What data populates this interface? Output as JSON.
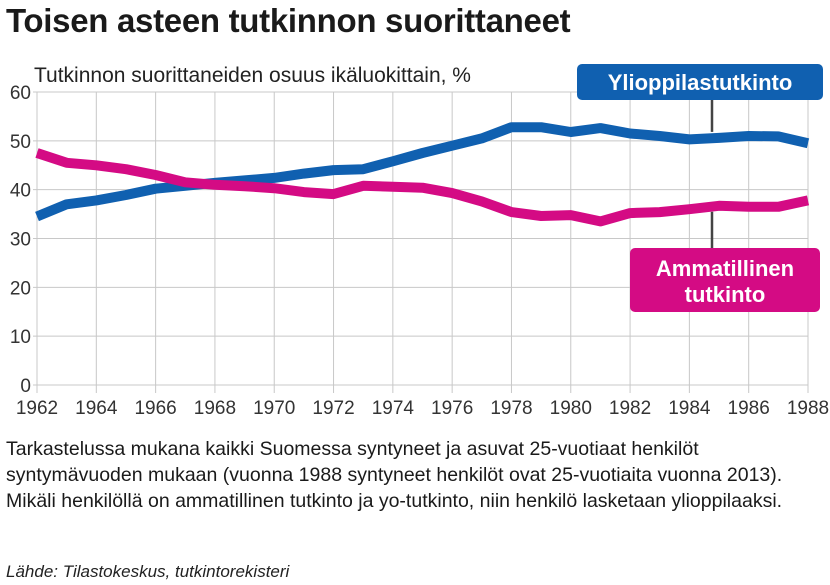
{
  "title": "Toisen asteen tutkinnon suorittaneet",
  "chart_data": {
    "type": "line",
    "subtitle": "Tutkinnon suorittaneiden osuus ikäluokittain, %",
    "x": [
      1962,
      1963,
      1964,
      1965,
      1966,
      1967,
      1968,
      1969,
      1970,
      1971,
      1972,
      1973,
      1974,
      1975,
      1976,
      1977,
      1978,
      1979,
      1980,
      1981,
      1982,
      1983,
      1984,
      1985,
      1986,
      1987,
      1988
    ],
    "x_ticks": [
      "1962",
      "1964",
      "1966",
      "1968",
      "1970",
      "1972",
      "1974",
      "1976",
      "1978",
      "1980",
      "1982",
      "1984",
      "1986",
      "1988"
    ],
    "y_ticks": [
      "0",
      "10",
      "20",
      "30",
      "40",
      "50",
      "60"
    ],
    "ylim": [
      0,
      60
    ],
    "xlim": [
      1962,
      1988
    ],
    "grid": true,
    "series": [
      {
        "name": "Ylioppilastutkinto",
        "color": "#1060b0",
        "values": [
          34.5,
          37.0,
          37.8,
          38.9,
          40.2,
          40.8,
          41.4,
          41.9,
          42.4,
          43.3,
          44.0,
          44.2,
          45.8,
          47.5,
          49.0,
          50.5,
          52.8,
          52.8,
          51.8,
          52.6,
          51.5,
          51.0,
          50.3,
          50.6,
          51.0,
          50.9,
          49.5
        ]
      },
      {
        "name": "Ammatillinen tutkinto",
        "color": "#d40b84",
        "values": [
          47.5,
          45.5,
          45.0,
          44.2,
          43.0,
          41.5,
          41.0,
          40.7,
          40.3,
          39.5,
          39.1,
          40.8,
          40.6,
          40.4,
          39.3,
          37.6,
          35.4,
          34.6,
          34.8,
          33.5,
          35.2,
          35.4,
          36.0,
          36.7,
          36.5,
          36.5,
          37.8
        ]
      }
    ]
  },
  "footnote": "Tarkastelussa mukana kaikki Suomessa syntyneet ja asuvat 25-vuotiaat henkilöt syntymävuoden mukaan (vuonna 1988 syntyneet henkilöt ovat 25-vuotiaita vuonna 2013). Mikäli henkilöllä on ammatillinen tutkinto ja yo-tutkinto, niin henkilö lasketaan ylioppilaaksi.",
  "source": "Lähde: Tilastokeskus, tutkintorekisteri"
}
